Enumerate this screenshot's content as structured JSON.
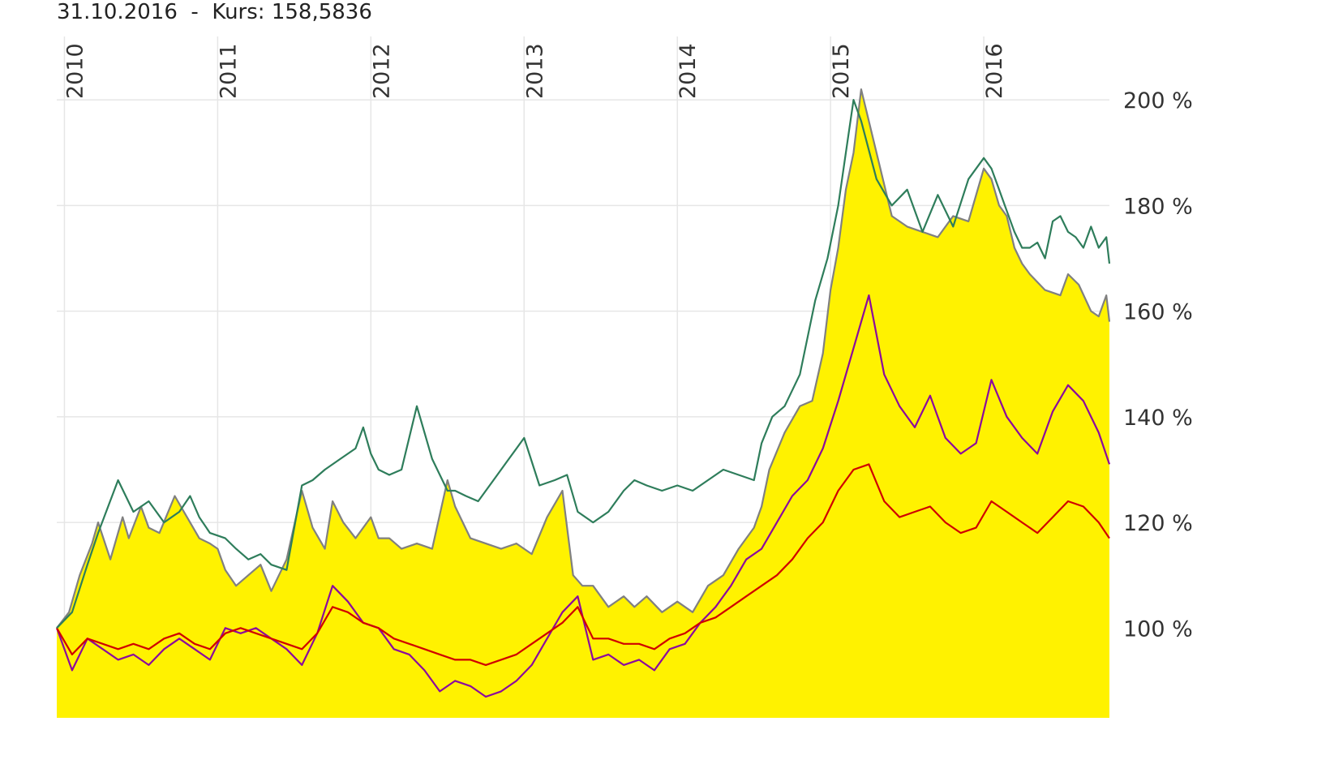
{
  "header": {
    "date": "31.10.2016",
    "separator": "-",
    "price_label": "Kurs:",
    "price_value": "158,5836"
  },
  "chart_data": {
    "type": "line",
    "x_ticks": [
      "2010",
      "2011",
      "2012",
      "2013",
      "2014",
      "2015",
      "2016"
    ],
    "y_ticks": [
      {
        "value": 100,
        "label": "100 %"
      },
      {
        "value": 120,
        "label": "120 %"
      },
      {
        "value": 140,
        "label": "140 %"
      },
      {
        "value": 160,
        "label": "160 %"
      },
      {
        "value": 180,
        "label": "180 %"
      },
      {
        "value": 200,
        "label": "200 %"
      }
    ],
    "x_range": [
      2009.95,
      2016.82
    ],
    "ylim": [
      83,
      212
    ],
    "grid": true,
    "colors": {
      "fund_fill": "#fff200",
      "fund_line": "#808080",
      "green": "#2e7d5b",
      "purple": "#8b0a9e",
      "red": "#d00000"
    },
    "series": [
      {
        "key": "fund",
        "style": "area",
        "x": [
          2009.95,
          2010.03,
          2010.1,
          2010.18,
          2010.22,
          2010.3,
          2010.38,
          2010.42,
          2010.5,
          2010.55,
          2010.62,
          2010.72,
          2010.8,
          2010.88,
          2010.95,
          2011.0,
          2011.05,
          2011.12,
          2011.2,
          2011.28,
          2011.35,
          2011.45,
          2011.55,
          2011.62,
          2011.7,
          2011.75,
          2011.82,
          2011.9,
          2012.0,
          2012.05,
          2012.12,
          2012.2,
          2012.3,
          2012.4,
          2012.5,
          2012.55,
          2012.65,
          2012.75,
          2012.85,
          2012.95,
          2013.05,
          2013.15,
          2013.25,
          2013.32,
          2013.38,
          2013.45,
          2013.55,
          2013.65,
          2013.72,
          2013.8,
          2013.9,
          2014.0,
          2014.1,
          2014.2,
          2014.3,
          2014.4,
          2014.5,
          2014.55,
          2014.6,
          2014.7,
          2014.8,
          2014.88,
          2014.95,
          2015.0,
          2015.05,
          2015.1,
          2015.15,
          2015.2,
          2015.3,
          2015.4,
          2015.5,
          2015.6,
          2015.7,
          2015.8,
          2015.9,
          2016.0,
          2016.05,
          2016.1,
          2016.15,
          2016.2,
          2016.25,
          2016.3,
          2016.4,
          2016.5,
          2016.55,
          2016.62,
          2016.7,
          2016.75,
          2016.8,
          2016.82
        ],
        "y": [
          100,
          103,
          110,
          116,
          120,
          113,
          121,
          117,
          123,
          119,
          118,
          125,
          121,
          117,
          116,
          115,
          111,
          108,
          110,
          112,
          107,
          113,
          126,
          119,
          115,
          124,
          120,
          117,
          121,
          117,
          117,
          115,
          116,
          115,
          128,
          123,
          117,
          116,
          115,
          116,
          114,
          121,
          126,
          110,
          108,
          108,
          104,
          106,
          104,
          106,
          103,
          105,
          103,
          108,
          110,
          115,
          119,
          123,
          130,
          137,
          142,
          143,
          152,
          164,
          172,
          183,
          190,
          202,
          190,
          178,
          176,
          175,
          174,
          178,
          177,
          187,
          185,
          180,
          178,
          172,
          169,
          167,
          164,
          163,
          167,
          165,
          160,
          159,
          163,
          158
        ]
      },
      {
        "key": "green",
        "style": "line",
        "x": [
          2009.95,
          2010.05,
          2010.15,
          2010.22,
          2010.35,
          2010.45,
          2010.55,
          2010.65,
          2010.75,
          2010.82,
          2010.88,
          2010.95,
          2011.05,
          2011.12,
          2011.2,
          2011.28,
          2011.35,
          2011.45,
          2011.55,
          2011.62,
          2011.7,
          2011.8,
          2011.9,
          2011.95,
          2012.0,
          2012.05,
          2012.12,
          2012.2,
          2012.3,
          2012.4,
          2012.5,
          2012.55,
          2012.62,
          2012.7,
          2012.8,
          2012.9,
          2013.0,
          2013.1,
          2013.2,
          2013.28,
          2013.35,
          2013.45,
          2013.55,
          2013.65,
          2013.72,
          2013.8,
          2013.9,
          2014.0,
          2014.1,
          2014.2,
          2014.3,
          2014.4,
          2014.5,
          2014.55,
          2014.62,
          2014.7,
          2014.8,
          2014.9,
          2014.98,
          2015.05,
          2015.1,
          2015.15,
          2015.2,
          2015.3,
          2015.4,
          2015.5,
          2015.6,
          2015.7,
          2015.8,
          2015.9,
          2016.0,
          2016.05,
          2016.1,
          2016.15,
          2016.2,
          2016.25,
          2016.3,
          2016.35,
          2016.4,
          2016.45,
          2016.5,
          2016.55,
          2016.6,
          2016.65,
          2016.7,
          2016.75,
          2016.8,
          2016.82
        ],
        "y": [
          100,
          103,
          112,
          118,
          128,
          122,
          124,
          120,
          122,
          125,
          121,
          118,
          117,
          115,
          113,
          114,
          112,
          111,
          127,
          128,
          130,
          132,
          134,
          138,
          133,
          130,
          129,
          130,
          142,
          132,
          126,
          126,
          125,
          124,
          128,
          132,
          136,
          127,
          128,
          129,
          122,
          120,
          122,
          126,
          128,
          127,
          126,
          127,
          126,
          128,
          130,
          129,
          128,
          135,
          140,
          142,
          148,
          162,
          170,
          180,
          190,
          200,
          196,
          185,
          180,
          183,
          175,
          182,
          176,
          185,
          189,
          187,
          183,
          179,
          175,
          172,
          172,
          173,
          170,
          177,
          178,
          175,
          174,
          172,
          176,
          172,
          174,
          169
        ]
      },
      {
        "key": "purple",
        "style": "line",
        "x": [
          2009.95,
          2010.05,
          2010.15,
          2010.25,
          2010.35,
          2010.45,
          2010.55,
          2010.65,
          2010.75,
          2010.85,
          2010.95,
          2011.05,
          2011.15,
          2011.25,
          2011.35,
          2011.45,
          2011.55,
          2011.65,
          2011.75,
          2011.85,
          2011.95,
          2012.05,
          2012.15,
          2012.25,
          2012.35,
          2012.45,
          2012.55,
          2012.65,
          2012.75,
          2012.85,
          2012.95,
          2013.05,
          2013.15,
          2013.25,
          2013.35,
          2013.45,
          2013.55,
          2013.65,
          2013.75,
          2013.85,
          2013.95,
          2014.05,
          2014.15,
          2014.25,
          2014.35,
          2014.45,
          2014.55,
          2014.65,
          2014.75,
          2014.85,
          2014.95,
          2015.05,
          2015.15,
          2015.25,
          2015.35,
          2015.45,
          2015.55,
          2015.65,
          2015.75,
          2015.85,
          2015.95,
          2016.05,
          2016.15,
          2016.25,
          2016.35,
          2016.45,
          2016.55,
          2016.65,
          2016.75,
          2016.82
        ],
        "y": [
          100,
          92,
          98,
          96,
          94,
          95,
          93,
          96,
          98,
          96,
          94,
          100,
          99,
          100,
          98,
          96,
          93,
          99,
          108,
          105,
          101,
          100,
          96,
          95,
          92,
          88,
          90,
          89,
          87,
          88,
          90,
          93,
          98,
          103,
          106,
          94,
          95,
          93,
          94,
          92,
          96,
          97,
          101,
          104,
          108,
          113,
          115,
          120,
          125,
          128,
          134,
          143,
          153,
          163,
          148,
          142,
          138,
          144,
          136,
          133,
          135,
          147,
          140,
          136,
          133,
          141,
          146,
          143,
          137,
          131
        ]
      },
      {
        "key": "red",
        "style": "line",
        "x": [
          2009.95,
          2010.05,
          2010.15,
          2010.25,
          2010.35,
          2010.45,
          2010.55,
          2010.65,
          2010.75,
          2010.85,
          2010.95,
          2011.05,
          2011.15,
          2011.25,
          2011.35,
          2011.45,
          2011.55,
          2011.65,
          2011.75,
          2011.85,
          2011.95,
          2012.05,
          2012.15,
          2012.25,
          2012.35,
          2012.45,
          2012.55,
          2012.65,
          2012.75,
          2012.85,
          2012.95,
          2013.05,
          2013.15,
          2013.25,
          2013.35,
          2013.45,
          2013.55,
          2013.65,
          2013.75,
          2013.85,
          2013.95,
          2014.05,
          2014.15,
          2014.25,
          2014.35,
          2014.45,
          2014.55,
          2014.65,
          2014.75,
          2014.85,
          2014.95,
          2015.05,
          2015.15,
          2015.25,
          2015.35,
          2015.45,
          2015.55,
          2015.65,
          2015.75,
          2015.85,
          2015.95,
          2016.05,
          2016.15,
          2016.25,
          2016.35,
          2016.45,
          2016.55,
          2016.65,
          2016.75,
          2016.82
        ],
        "y": [
          100,
          95,
          98,
          97,
          96,
          97,
          96,
          98,
          99,
          97,
          96,
          99,
          100,
          99,
          98,
          97,
          96,
          99,
          104,
          103,
          101,
          100,
          98,
          97,
          96,
          95,
          94,
          94,
          93,
          94,
          95,
          97,
          99,
          101,
          104,
          98,
          98,
          97,
          97,
          96,
          98,
          99,
          101,
          102,
          104,
          106,
          108,
          110,
          113,
          117,
          120,
          126,
          130,
          131,
          124,
          121,
          122,
          123,
          120,
          118,
          119,
          124,
          122,
          120,
          118,
          121,
          124,
          123,
          120,
          117
        ]
      }
    ]
  }
}
